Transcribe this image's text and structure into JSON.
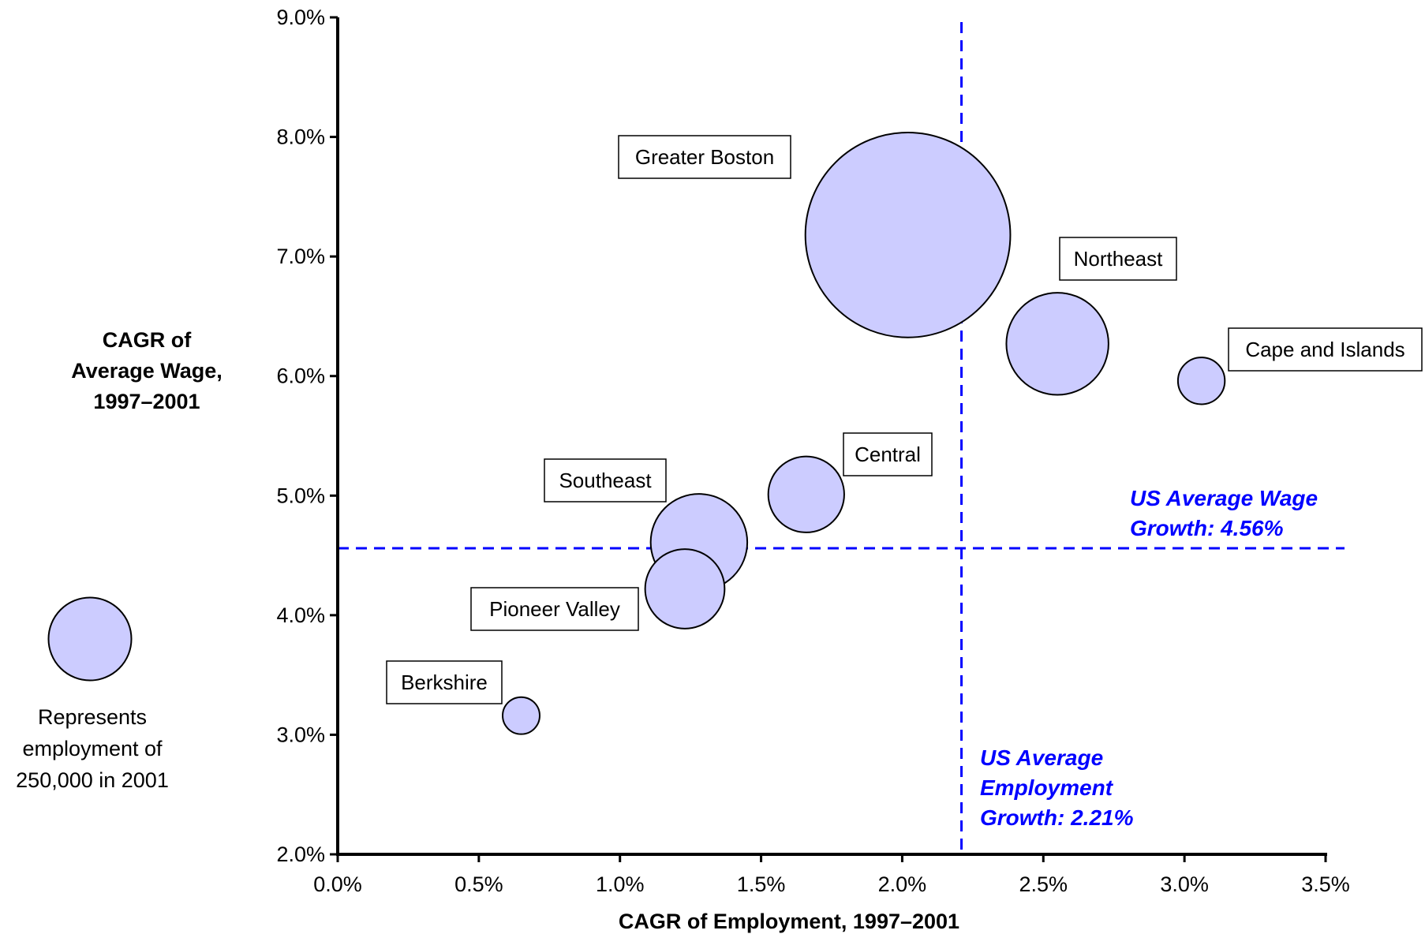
{
  "chart_data": {
    "type": "bubble",
    "xlabel": "CAGR of Employment, 1997–2001",
    "ylabel": [
      "CAGR of",
      "Average Wage,",
      "1997–2001"
    ],
    "xlim": [
      0.0,
      3.5
    ],
    "ylim": [
      2.0,
      9.0
    ],
    "x_ticks": [
      0.0,
      0.5,
      1.0,
      1.5,
      2.0,
      2.5,
      3.0,
      3.5
    ],
    "y_ticks": [
      2.0,
      3.0,
      4.0,
      5.0,
      6.0,
      7.0,
      8.0,
      9.0
    ],
    "x_tick_labels": [
      "0.0%",
      "0.5%",
      "1.0%",
      "1.5%",
      "2.0%",
      "2.5%",
      "3.0%",
      "3.5%"
    ],
    "y_tick_labels": [
      "2.0%",
      "3.0%",
      "4.0%",
      "5.0%",
      "6.0%",
      "7.0%",
      "8.0%",
      "9.0%"
    ],
    "grid": false,
    "bubble_color": "#ccccff",
    "bubble_stroke": "#000000",
    "points": [
      {
        "label": "Greater Boston",
        "x": 2.02,
        "y": 7.18,
        "employment": 1530000
      },
      {
        "label": "Northeast",
        "x": 2.55,
        "y": 6.27,
        "employment": 380000
      },
      {
        "label": "Cape and Islands",
        "x": 3.06,
        "y": 5.96,
        "employment": 80000
      },
      {
        "label": "Central",
        "x": 1.66,
        "y": 5.01,
        "employment": 210000
      },
      {
        "label": "Southeast",
        "x": 1.28,
        "y": 4.61,
        "employment": 340000
      },
      {
        "label": "Pioneer Valley",
        "x": 1.23,
        "y": 4.22,
        "employment": 230000
      },
      {
        "label": "Berkshire",
        "x": 0.65,
        "y": 3.16,
        "employment": 50000
      }
    ],
    "reference_lines": [
      {
        "orientation": "horizontal",
        "value": 4.56,
        "color": "#0000ff",
        "label": [
          "US Average Wage",
          "Growth: 4.56%"
        ]
      },
      {
        "orientation": "vertical",
        "value": 2.21,
        "color": "#0000ff",
        "label": [
          "US Average",
          "Employment",
          "Growth: 2.21%"
        ]
      }
    ],
    "legend": {
      "employment": 250000,
      "text": [
        "Represents",
        "employment of",
        "250,000 in 2001"
      ],
      "placement": "left"
    }
  }
}
